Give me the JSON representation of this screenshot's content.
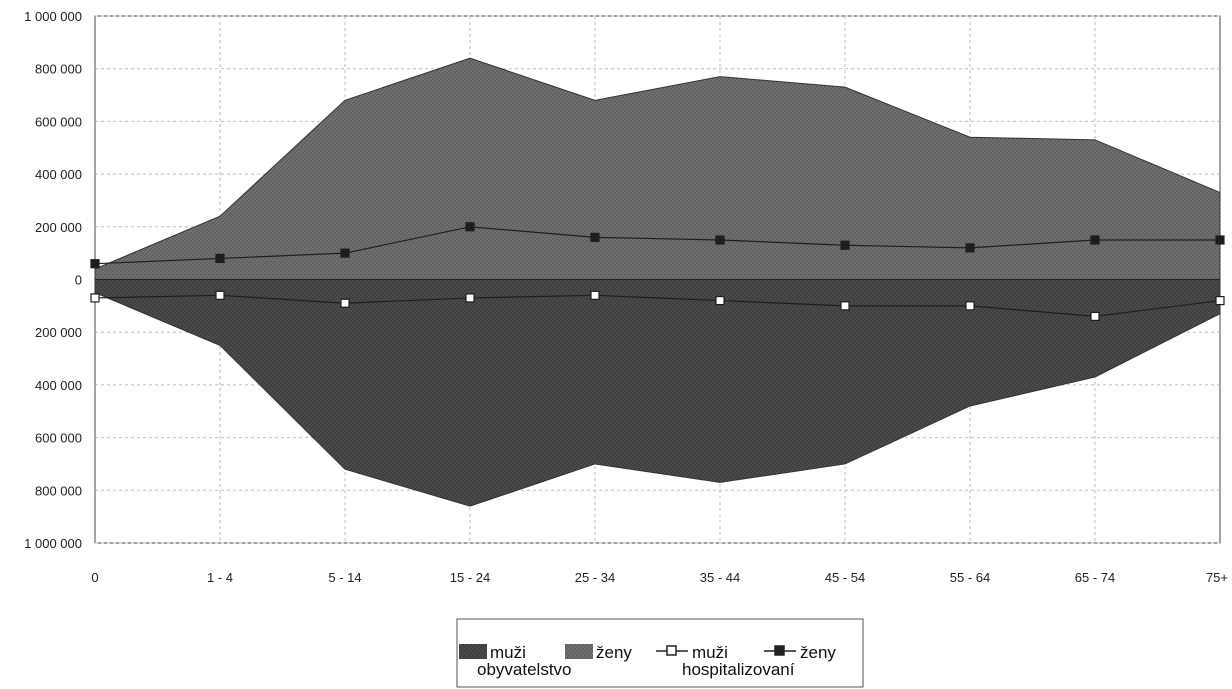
{
  "chart_data": {
    "type": "area",
    "categories": [
      "0",
      "1 - 4",
      "5 - 14",
      "15 - 24",
      "25 - 34",
      "35 - 44",
      "45 - 54",
      "55 - 64",
      "65 - 74",
      "75+"
    ],
    "series": [
      {
        "name": "muži",
        "group": "obyvatelstvo",
        "kind": "area",
        "direction": "down",
        "values": [
          50000,
          250000,
          720000,
          860000,
          700000,
          770000,
          700000,
          480000,
          370000,
          130000
        ]
      },
      {
        "name": "ženy",
        "group": "obyvatelstvo",
        "kind": "area",
        "direction": "up",
        "values": [
          40000,
          240000,
          680000,
          840000,
          680000,
          770000,
          730000,
          540000,
          530000,
          330000
        ]
      },
      {
        "name": "muži",
        "group": "hospitalizovaní",
        "kind": "line",
        "marker": "hollow-square",
        "direction": "down",
        "values": [
          70000,
          60000,
          90000,
          70000,
          60000,
          80000,
          100000,
          100000,
          140000,
          80000
        ]
      },
      {
        "name": "ženy",
        "group": "hospitalizovaní",
        "kind": "line",
        "marker": "filled-square",
        "direction": "up",
        "values": [
          60000,
          80000,
          100000,
          200000,
          160000,
          150000,
          130000,
          120000,
          150000,
          150000
        ]
      }
    ],
    "y_tick_labels": [
      "1 000 000",
      "800 000",
      "600 000",
      "400 000",
      "200 000",
      "0",
      "200 000",
      "400 000",
      "600 000",
      "800 000",
      "1 000 000"
    ],
    "ylim": [
      -1000000,
      1000000
    ],
    "grid": true,
    "legend": {
      "position": "bottom-center",
      "entries": [
        "muži",
        "ženy",
        "muži",
        "ženy"
      ],
      "group_labels": [
        "obyvatelstvo",
        "hospitalizovaní"
      ]
    },
    "colors": {
      "male_area": "#4a4a4a",
      "female_area": "#6e6e6e",
      "grid": "#bdbdbd",
      "axis": "#333333"
    }
  }
}
